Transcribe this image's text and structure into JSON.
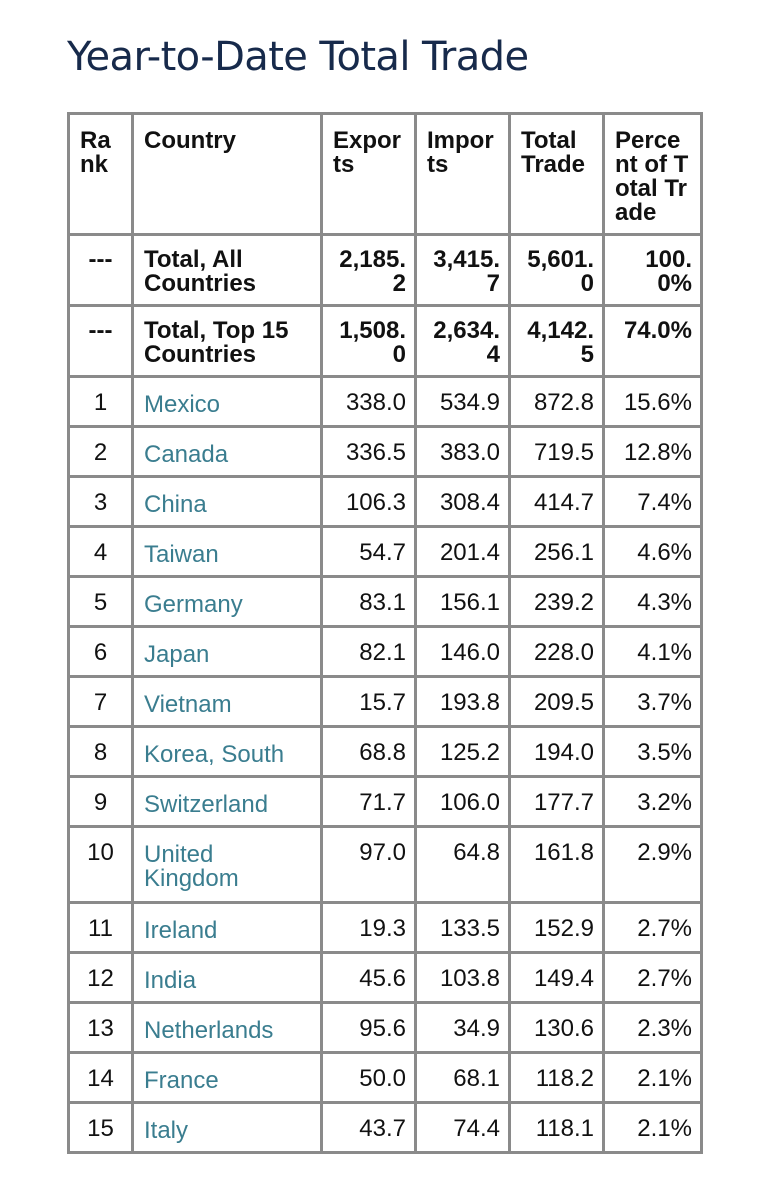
{
  "title": "Year-to-Date Total Trade",
  "colors": {
    "title": "#172a4b",
    "link": "#3a7d8f",
    "border": "#8a8a8a"
  },
  "headers": {
    "rank": "Rank",
    "country": "Country",
    "exports": "Exports",
    "imports": "Imports",
    "total": "Total Trade",
    "percent": "Percent of Total Trade"
  },
  "totals": [
    {
      "rank": "---",
      "country": "Total, All Countries",
      "exports": "2,185.2",
      "imports": "3,415.7",
      "total": "5,601.0",
      "percent": "100.0%"
    },
    {
      "rank": "---",
      "country": "Total, Top 15 Countries",
      "exports": "1,508.0",
      "imports": "2,634.4",
      "total": "4,142.5",
      "percent": "74.0%"
    }
  ],
  "rows": [
    {
      "rank": "1",
      "country": "Mexico",
      "exports": "338.0",
      "imports": "534.9",
      "total": "872.8",
      "percent": "15.6%"
    },
    {
      "rank": "2",
      "country": "Canada",
      "exports": "336.5",
      "imports": "383.0",
      "total": "719.5",
      "percent": "12.8%"
    },
    {
      "rank": "3",
      "country": "China",
      "exports": "106.3",
      "imports": "308.4",
      "total": "414.7",
      "percent": "7.4%"
    },
    {
      "rank": "4",
      "country": "Taiwan",
      "exports": "54.7",
      "imports": "201.4",
      "total": "256.1",
      "percent": "4.6%"
    },
    {
      "rank": "5",
      "country": "Germany",
      "exports": "83.1",
      "imports": "156.1",
      "total": "239.2",
      "percent": "4.3%"
    },
    {
      "rank": "6",
      "country": "Japan",
      "exports": "82.1",
      "imports": "146.0",
      "total": "228.0",
      "percent": "4.1%"
    },
    {
      "rank": "7",
      "country": "Vietnam",
      "exports": "15.7",
      "imports": "193.8",
      "total": "209.5",
      "percent": "3.7%"
    },
    {
      "rank": "8",
      "country": "Korea, South",
      "exports": "68.8",
      "imports": "125.2",
      "total": "194.0",
      "percent": "3.5%"
    },
    {
      "rank": "9",
      "country": "Switzerland",
      "exports": "71.7",
      "imports": "106.0",
      "total": "177.7",
      "percent": "3.2%"
    },
    {
      "rank": "10",
      "country": "United Kingdom",
      "exports": "97.0",
      "imports": "64.8",
      "total": "161.8",
      "percent": "2.9%"
    },
    {
      "rank": "11",
      "country": "Ireland",
      "exports": "19.3",
      "imports": "133.5",
      "total": "152.9",
      "percent": "2.7%"
    },
    {
      "rank": "12",
      "country": "India",
      "exports": "45.6",
      "imports": "103.8",
      "total": "149.4",
      "percent": "2.7%"
    },
    {
      "rank": "13",
      "country": "Netherlands",
      "exports": "95.6",
      "imports": "34.9",
      "total": "130.6",
      "percent": "2.3%"
    },
    {
      "rank": "14",
      "country": "France",
      "exports": "50.0",
      "imports": "68.1",
      "total": "118.2",
      "percent": "2.1%"
    },
    {
      "rank": "15",
      "country": "Italy",
      "exports": "43.7",
      "imports": "74.4",
      "total": "118.1",
      "percent": "2.1%"
    }
  ]
}
